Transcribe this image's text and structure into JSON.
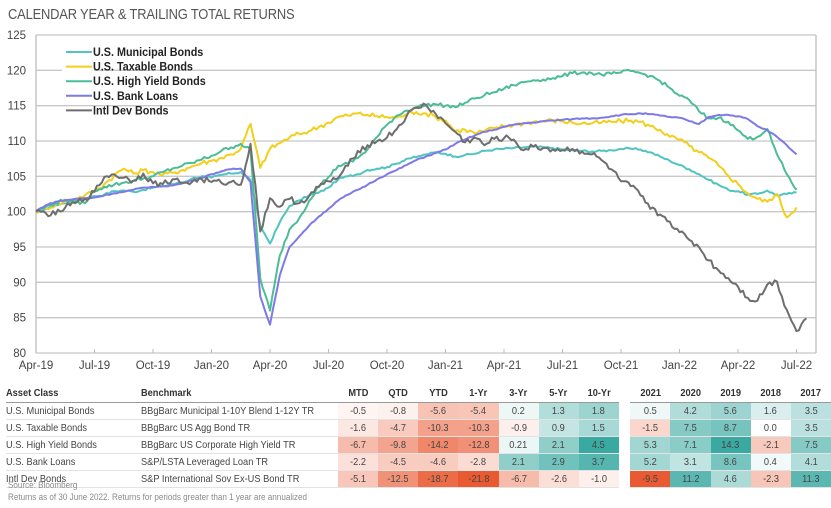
{
  "title": "CALENDAR YEAR & TRAILING TOTAL RETURNS",
  "chart_data": {
    "type": "line",
    "title": "CALENDAR YEAR & TRAILING TOTAL RETURNS",
    "xlabel": "",
    "ylabel": "",
    "ylim": [
      80,
      125
    ],
    "yticks": [
      80,
      85,
      90,
      95,
      100,
      105,
      110,
      115,
      120,
      125
    ],
    "xticks": [
      "Apr-19",
      "Jul-19",
      "Oct-19",
      "Jan-20",
      "Apr-20",
      "Jul-20",
      "Oct-20",
      "Jan-21",
      "Apr-21",
      "Jul-21",
      "Oct-21",
      "Jan-22",
      "Apr-22",
      "Jul-22"
    ],
    "x_unit": "months since Apr-19 (sampled every half month)",
    "x_step_months": 0.5,
    "grid": true,
    "legend_position": "top-left",
    "series": [
      {
        "name": "U.S.  Municipal Bonds",
        "color": "#4fc4c0",
        "values": [
          100,
          100.4,
          100.9,
          101.2,
          101.6,
          101.8,
          102.2,
          102.4,
          102.9,
          103,
          102.8,
          103.1,
          103.4,
          103.6,
          103.9,
          104.1,
          104.7,
          105,
          104.8,
          105.2,
          105.4,
          105.6,
          104.5,
          98,
          95.5,
          98.5,
          100.8,
          101.6,
          102.3,
          102.7,
          103.4,
          104.6,
          105,
          105.3,
          105.9,
          106.1,
          106.3,
          106.8,
          107.5,
          107.7,
          108.1,
          108.4,
          108.2,
          107.8,
          108,
          108.2,
          108.6,
          108.8,
          108.9,
          109,
          109.1,
          109.2,
          109.1,
          109,
          108.8,
          108.7,
          108.6,
          108.5,
          108.6,
          108.7,
          108.9,
          108.9,
          108.8,
          108.4,
          107.8,
          107.2,
          106.6,
          106,
          105.3,
          104.5,
          103.8,
          103.1,
          102.9,
          102.4,
          102.5,
          103,
          102.3,
          102.5,
          102.7
        ]
      },
      {
        "name": "U.S. Taxable Bonds",
        "color": "#f2cf1a",
        "values": [
          100,
          100.5,
          101,
          101.4,
          101.8,
          102.3,
          102.9,
          103.9,
          105.1,
          106.1,
          105.4,
          105.9,
          105.6,
          105.2,
          105.5,
          105.9,
          106.4,
          106.9,
          107.2,
          107.6,
          108.1,
          108.9,
          112.4,
          106.2,
          108.9,
          109.7,
          110.5,
          111,
          111.4,
          112,
          112.6,
          113.4,
          113.6,
          113.9,
          113.7,
          113.5,
          113.4,
          113.3,
          113.8,
          114.1,
          113.9,
          113.4,
          112.9,
          111.4,
          111.6,
          111.1,
          111.4,
          111.8,
          112.1,
          112.3,
          112.5,
          112.7,
          112.8,
          112.9,
          112.8,
          112.6,
          112.5,
          112.5,
          112.6,
          112.7,
          112.8,
          112.9,
          112.7,
          112.1,
          111.6,
          110.6,
          110.2,
          109.3,
          108.4,
          107.6,
          106.5,
          105.1,
          103.9,
          102.6,
          101.8,
          101.4,
          102.5,
          99.2,
          100.6
        ]
      },
      {
        "name": "U.S. High Yield Bonds",
        "color": "#4bbd95",
        "values": [
          100,
          100.7,
          101.2,
          101.7,
          101.4,
          101.2,
          103,
          103.5,
          103.8,
          104.1,
          104.4,
          104.7,
          105,
          105.6,
          106.1,
          106.5,
          106.9,
          107.4,
          107.9,
          108.6,
          109.1,
          109.6,
          108.7,
          90.5,
          86,
          93.8,
          97.5,
          99.1,
          101.5,
          103.6,
          104.9,
          106.5,
          106.8,
          107.6,
          108.8,
          110.6,
          112.3,
          113.6,
          114.3,
          114.8,
          115.1,
          115.2,
          115,
          114.8,
          115.4,
          116,
          116.5,
          116.9,
          117.4,
          117.9,
          118.3,
          118.6,
          118.7,
          118.9,
          119.2,
          119.6,
          119.7,
          119.6,
          119.4,
          119.5,
          119.7,
          119.9,
          119.6,
          119.2,
          118.5,
          117.5,
          116.4,
          115.8,
          114.2,
          113.2,
          113.3,
          112.7,
          111.5,
          110.3,
          110.6,
          111.7,
          108.1,
          105.3,
          103.1
        ]
      },
      {
        "name": "U.S. Bank Loans",
        "color": "#7d79e6",
        "values": [
          100.1,
          100.9,
          101.4,
          101.6,
          101.8,
          101.9,
          102,
          102.3,
          102.6,
          102.8,
          103.1,
          103.4,
          103.5,
          103.6,
          103.7,
          104,
          104.4,
          104.8,
          105.3,
          105.7,
          106,
          106.1,
          104.2,
          88,
          84,
          91,
          95,
          96.5,
          98,
          99.3,
          100.4,
          101.6,
          102.4,
          103.1,
          103.8,
          104.6,
          105.3,
          105.9,
          106.6,
          107.3,
          107.8,
          108.3,
          108.8,
          109.6,
          110.2,
          110.8,
          111.3,
          111.6,
          112,
          112.3,
          112.5,
          112.6,
          112.8,
          112.9,
          113,
          113.1,
          113.2,
          113.2,
          113.3,
          113.5,
          113.7,
          113.8,
          113.9,
          113.8,
          113.6,
          113.4,
          113.3,
          112.8,
          112.4,
          113.4,
          113.7,
          113.7,
          113.5,
          113.1,
          112.1,
          111.5,
          110.6,
          109.4,
          108.1
        ]
      },
      {
        "name": "Intl Dev Bonds",
        "color": "#6e6e6e",
        "values": [
          100,
          99.8,
          99.6,
          100.6,
          101.2,
          101.8,
          102.8,
          104.9,
          105.3,
          104.8,
          104.4,
          105.4,
          104,
          103.9,
          104.6,
          104.1,
          104.2,
          104.6,
          104.2,
          104.1,
          104.2,
          103.8,
          109.6,
          97.2,
          101.9,
          100.7,
          101.8,
          101.2,
          102.2,
          103.5,
          104.3,
          104.8,
          106.5,
          108.6,
          109.4,
          110,
          110.5,
          111.7,
          113.5,
          114.7,
          115.1,
          113.8,
          112.5,
          111.3,
          109.8,
          110.5,
          109.4,
          110.3,
          110.4,
          110.2,
          108.7,
          109.2,
          109,
          108.8,
          108.7,
          108.9,
          108.5,
          108.1,
          107.3,
          106,
          104.3,
          103.6,
          102.3,
          100.4,
          99.6,
          98.6,
          97.1,
          96,
          95,
          93.1,
          91.7,
          90.6,
          89.4,
          87.8,
          87.4,
          89.7,
          90.1,
          86.1,
          83.1,
          84.9
        ]
      }
    ]
  },
  "table": {
    "headers": {
      "asset_class": "Asset Class",
      "benchmark": "Benchmark",
      "trailing": [
        "MTD",
        "QTD",
        "YTD",
        "1-Yr",
        "3-Yr",
        "5-Yr",
        "10-Yr"
      ],
      "calendar": [
        "2021",
        "2020",
        "2019",
        "2018",
        "2017"
      ]
    },
    "rows": [
      {
        "asset_class": "U.S. Municipal Bonds",
        "benchmark": "BBgBarc Municipal 1-10Y Blend 1-12Y TR",
        "trailing": [
          "-0.5",
          "-0.8",
          "-5.6",
          "-5.4",
          "0.2",
          "1.3",
          "1.8"
        ],
        "calendar": [
          "0.5",
          "4.2",
          "5.6",
          "1.6",
          "3.5"
        ]
      },
      {
        "asset_class": "U.S. Taxable Bonds",
        "benchmark": "BBgBarc US Agg Bond TR",
        "trailing": [
          "-1.6",
          "-4.7",
          "-10.3",
          "-10.3",
          "-0.9",
          "0.9",
          "1.5"
        ],
        "calendar": [
          "-1.5",
          "7.5",
          "8.7",
          "0.0",
          "3.5"
        ]
      },
      {
        "asset_class": "U.S. High Yield Bonds",
        "benchmark": "BBgBarc US Corporate High Yield TR",
        "trailing": [
          "-6.7",
          "-9.8",
          "-14.2",
          "-12.8",
          "0.21",
          "2.1",
          "4.5"
        ],
        "calendar": [
          "5.3",
          "7.1",
          "14.3",
          "-2.1",
          "7.5"
        ]
      },
      {
        "asset_class": "U.S. Bank Loans",
        "benchmark": "S&P/LSTA Leveraged Loan TR",
        "trailing": [
          "-2.2",
          "-4.5",
          "-4.6",
          "-2.8",
          "2.1",
          "2.9",
          "3.7"
        ],
        "calendar": [
          "5.2",
          "3.1",
          "8.6",
          "0.4",
          "4.1"
        ]
      },
      {
        "asset_class": "Intl Dev Bonds",
        "benchmark": "S&P International Sov Ex-US Bond TR",
        "trailing": [
          "-5.1",
          "-12.5",
          "-18.7",
          "-21.8",
          "-6.7",
          "-2.6",
          "-1.0"
        ],
        "calendar": [
          "-9.5",
          "11.2",
          "4.6",
          "-2.3",
          "11.3"
        ]
      }
    ],
    "heat_colors": {
      "negative": "#ea5a32",
      "positive": "#3aa9a2",
      "neutral": "#ffffff"
    }
  },
  "footnotes": {
    "source": "Source: Bloomberg",
    "note": "Returns as of 30 June 2022. Returns for periods greater than 1 year are annualized"
  }
}
